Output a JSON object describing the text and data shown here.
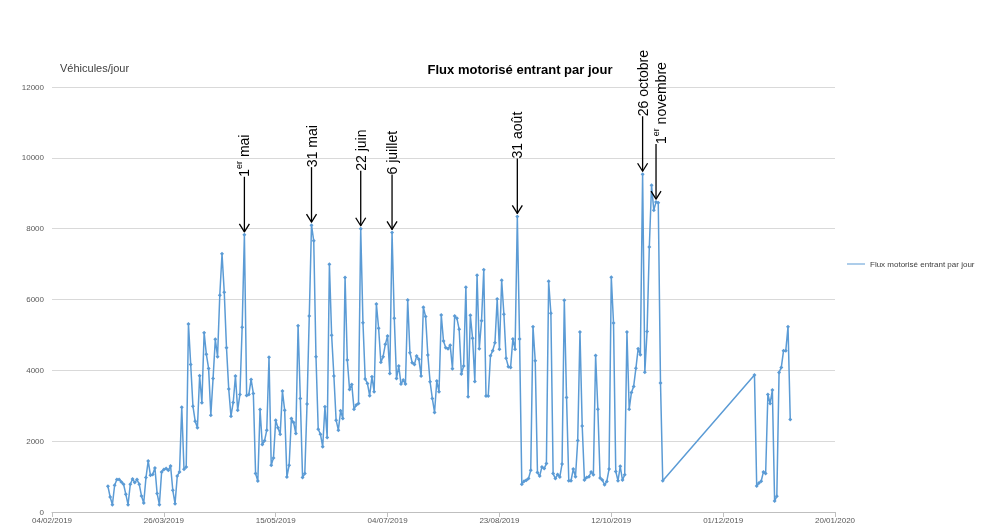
{
  "chart_data": {
    "type": "line",
    "title": "Flux motorisé entrant par jour",
    "ylabel": "Véhicules/jour",
    "xlim": [
      "2019-02-04",
      "2020-01-20"
    ],
    "xticks": [
      {
        "value": "2019-02-04",
        "label": "04/02/2019"
      },
      {
        "value": "2019-03-26",
        "label": "26/03/2019"
      },
      {
        "value": "2019-05-15",
        "label": "15/05/2019"
      },
      {
        "value": "2019-07-04",
        "label": "04/07/2019"
      },
      {
        "value": "2019-08-23",
        "label": "23/08/2019"
      },
      {
        "value": "2019-10-12",
        "label": "12/10/2019"
      },
      {
        "value": "2019-12-01",
        "label": "01/12/2019"
      },
      {
        "value": "2020-01-20",
        "label": "20/01/2020"
      }
    ],
    "ylim": [
      0,
      12000
    ],
    "yticks": [
      0,
      2000,
      4000,
      6000,
      8000,
      10000,
      12000
    ],
    "grid": "y",
    "legend": "right",
    "marker": "diamond",
    "line_style": "solid",
    "x": [
      "2019-03-01",
      "2019-03-02",
      "2019-03-03",
      "2019-03-04",
      "2019-03-05",
      "2019-03-06",
      "2019-03-07",
      "2019-03-08",
      "2019-03-09",
      "2019-03-10",
      "2019-03-11",
      "2019-03-12",
      "2019-03-13",
      "2019-03-14",
      "2019-03-15",
      "2019-03-16",
      "2019-03-17",
      "2019-03-18",
      "2019-03-19",
      "2019-03-20",
      "2019-03-21",
      "2019-03-22",
      "2019-03-23",
      "2019-03-24",
      "2019-03-25",
      "2019-03-26",
      "2019-03-27",
      "2019-03-28",
      "2019-03-29",
      "2019-03-30",
      "2019-03-31",
      "2019-04-01",
      "2019-04-02",
      "2019-04-03",
      "2019-04-04",
      "2019-04-05",
      "2019-04-06",
      "2019-04-07",
      "2019-04-08",
      "2019-04-09",
      "2019-04-10",
      "2019-04-11",
      "2019-04-12",
      "2019-04-13",
      "2019-04-14",
      "2019-04-15",
      "2019-04-16",
      "2019-04-17",
      "2019-04-18",
      "2019-04-19",
      "2019-04-20",
      "2019-04-21",
      "2019-04-22",
      "2019-04-23",
      "2019-04-24",
      "2019-04-25",
      "2019-04-26",
      "2019-04-27",
      "2019-04-28",
      "2019-04-29",
      "2019-04-30",
      "2019-05-01",
      "2019-05-02",
      "2019-05-03",
      "2019-05-04",
      "2019-05-05",
      "2019-05-06",
      "2019-05-07",
      "2019-05-08",
      "2019-05-09",
      "2019-05-10",
      "2019-05-11",
      "2019-05-12",
      "2019-05-13",
      "2019-05-14",
      "2019-05-15",
      "2019-05-16",
      "2019-05-17",
      "2019-05-18",
      "2019-05-19",
      "2019-05-20",
      "2019-05-21",
      "2019-05-22",
      "2019-05-23",
      "2019-05-24",
      "2019-05-25",
      "2019-05-26",
      "2019-05-27",
      "2019-05-28",
      "2019-05-29",
      "2019-05-30",
      "2019-05-31",
      "2019-06-01",
      "2019-06-02",
      "2019-06-03",
      "2019-06-04",
      "2019-06-05",
      "2019-06-06",
      "2019-06-07",
      "2019-06-08",
      "2019-06-09",
      "2019-06-10",
      "2019-06-11",
      "2019-06-12",
      "2019-06-13",
      "2019-06-14",
      "2019-06-15",
      "2019-06-16",
      "2019-06-17",
      "2019-06-18",
      "2019-06-19",
      "2019-06-20",
      "2019-06-21",
      "2019-06-22",
      "2019-06-23",
      "2019-06-24",
      "2019-06-25",
      "2019-06-26",
      "2019-06-27",
      "2019-06-28",
      "2019-06-29",
      "2019-06-30",
      "2019-07-01",
      "2019-07-02",
      "2019-07-03",
      "2019-07-04",
      "2019-07-05",
      "2019-07-06",
      "2019-07-07",
      "2019-07-08",
      "2019-07-09",
      "2019-07-10",
      "2019-07-11",
      "2019-07-12",
      "2019-07-13",
      "2019-07-14",
      "2019-07-15",
      "2019-07-16",
      "2019-07-17",
      "2019-07-18",
      "2019-07-19",
      "2019-07-20",
      "2019-07-21",
      "2019-07-22",
      "2019-07-23",
      "2019-07-24",
      "2019-07-25",
      "2019-07-26",
      "2019-07-27",
      "2019-07-28",
      "2019-07-29",
      "2019-07-30",
      "2019-07-31",
      "2019-08-01",
      "2019-08-02",
      "2019-08-03",
      "2019-08-04",
      "2019-08-05",
      "2019-08-06",
      "2019-08-07",
      "2019-08-08",
      "2019-08-09",
      "2019-08-10",
      "2019-08-11",
      "2019-08-12",
      "2019-08-13",
      "2019-08-14",
      "2019-08-15",
      "2019-08-16",
      "2019-08-17",
      "2019-08-18",
      "2019-08-19",
      "2019-08-20",
      "2019-08-21",
      "2019-08-22",
      "2019-08-23",
      "2019-08-24",
      "2019-08-25",
      "2019-08-26",
      "2019-08-27",
      "2019-08-28",
      "2019-08-29",
      "2019-08-30",
      "2019-08-31",
      "2019-09-01",
      "2019-09-02",
      "2019-09-03",
      "2019-09-04",
      "2019-09-05",
      "2019-09-06",
      "2019-09-07",
      "2019-09-08",
      "2019-09-09",
      "2019-09-10",
      "2019-09-11",
      "2019-09-12",
      "2019-09-13",
      "2019-09-14",
      "2019-09-15",
      "2019-09-16",
      "2019-09-17",
      "2019-09-18",
      "2019-09-19",
      "2019-09-20",
      "2019-09-21",
      "2019-09-22",
      "2019-09-23",
      "2019-09-24",
      "2019-09-25",
      "2019-09-26",
      "2019-09-27",
      "2019-09-28",
      "2019-09-29",
      "2019-09-30",
      "2019-10-01",
      "2019-10-02",
      "2019-10-03",
      "2019-10-04",
      "2019-10-05",
      "2019-10-06",
      "2019-10-07",
      "2019-10-08",
      "2019-10-09",
      "2019-10-10",
      "2019-10-11",
      "2019-10-12",
      "2019-10-13",
      "2019-10-14",
      "2019-10-15",
      "2019-10-16",
      "2019-10-17",
      "2019-10-18",
      "2019-10-19",
      "2019-10-20",
      "2019-10-21",
      "2019-10-22",
      "2019-10-23",
      "2019-10-24",
      "2019-10-25",
      "2019-10-26",
      "2019-10-27",
      "2019-10-28",
      "2019-10-29",
      "2019-10-30",
      "2019-10-31",
      "2019-11-01",
      "2019-11-02",
      "2019-11-03",
      "2019-11-04",
      "2019-12-15",
      "2019-12-16",
      "2019-12-17",
      "2019-12-18",
      "2019-12-19",
      "2019-12-20",
      "2019-12-21",
      "2019-12-22",
      "2019-12-23",
      "2019-12-24",
      "2019-12-25",
      "2019-12-26",
      "2019-12-27",
      "2019-12-28",
      "2019-12-29",
      "2019-12-30",
      "2019-12-31"
    ],
    "series": [
      {
        "name": "Flux motorisé entrant par jour",
        "color": "#5b9bd5",
        "values": [
          726,
          424,
          207,
          755,
          915,
          915,
          850,
          783,
          500,
          207,
          783,
          934,
          830,
          915,
          783,
          453,
          255,
          971,
          1443,
          1037,
          1056,
          1245,
          519,
          207,
          1132,
          1198,
          1226,
          1179,
          1301,
          613,
          236,
          1018,
          1132,
          2961,
          1207,
          1273,
          5309,
          4168,
          2989,
          2565,
          2376,
          3847,
          3084,
          5064,
          4451,
          4055,
          2735,
          3772,
          4875,
          4385,
          6120,
          7289,
          6205,
          4640,
          3470,
          2706,
          3093,
          3838,
          2876,
          3319,
          5215,
          7827,
          3291,
          3319,
          3744,
          3348,
          1084,
          877,
          2895,
          1905,
          2009,
          2310,
          4366,
          1320,
          1528,
          2593,
          2376,
          2197,
          3414,
          2876,
          990,
          1320,
          2640,
          2527,
          2216,
          5262,
          3206,
          971,
          1084,
          3046,
          5535,
          8100,
          7657,
          4385,
          2339,
          2197,
          1839,
          2970,
          2103,
          6997,
          4988,
          3838,
          2593,
          2310,
          2857,
          2640,
          6620,
          4291,
          3461,
          3602,
          2904,
          3018,
          3065,
          7997,
          5347,
          3753,
          3631,
          3282,
          3819,
          3395,
          5875,
          5187,
          4225,
          4385,
          4734,
          4970,
          3913,
          7893,
          5469,
          3772,
          4121,
          3612,
          3725,
          3612,
          5988,
          4498,
          4215,
          4168,
          4404,
          4310,
          3838,
          5781,
          5517,
          4432,
          3678,
          3206,
          2810,
          3697,
          3395,
          5564,
          4828,
          4640,
          4611,
          4706,
          4045,
          5535,
          5469,
          5158,
          3895,
          4121,
          6346,
          3253,
          5554,
          4904,
          3687,
          6686,
          4611,
          5403,
          6837,
          3272,
          3272,
          4413,
          4555,
          4781,
          6016,
          4592,
          6544,
          5583,
          4338,
          4102,
          4083,
          4885,
          4592,
          8346,
          4885,
          783,
          868,
          896,
          943,
          1179,
          5234,
          4272,
          1113,
          1018,
          1273,
          1226,
          1367,
          6516,
          5611,
          1084,
          943,
          1056,
          990,
          1356,
          5982,
          3233,
          882,
          882,
          1213,
          995,
          2019,
          5081,
          2427,
          901,
          976,
          995,
          1128,
          1052,
          4418,
          2901,
          957,
          901,
          768,
          863,
          1213,
          6627,
          5337,
          1147,
          882,
          1289,
          901,
          1052,
          5081,
          2901,
          3375,
          3546,
          4057,
          4607,
          4437,
          9537,
          3944,
          5100,
          7480,
          9224,
          8523,
          8750,
          8731,
          3640,
          882,
          3866,
          736,
          820,
          868,
          1132,
          1084,
          3319,
          3065,
          3442,
          311,
          443,
          3942,
          4083,
          4555,
          4555,
          5234,
          2612
        ]
      }
    ],
    "annotations": [
      {
        "text": "1$^{er}$ mai",
        "x": "2019-05-01",
        "y": 7827
      },
      {
        "text": "31 mai",
        "x": "2019-05-31",
        "y": 8100
      },
      {
        "text": "22 juin",
        "x": "2019-06-22",
        "y": 7997
      },
      {
        "text": "6 juillet",
        "x": "2019-07-06",
        "y": 7893
      },
      {
        "text": "31 août",
        "x": "2019-08-31",
        "y": 8346
      },
      {
        "text": "26 octobre",
        "x": "2019-10-26",
        "y": 9537
      },
      {
        "text": "1$^{er}$ novembre",
        "x": "2019-11-01",
        "y": 8750
      }
    ]
  }
}
